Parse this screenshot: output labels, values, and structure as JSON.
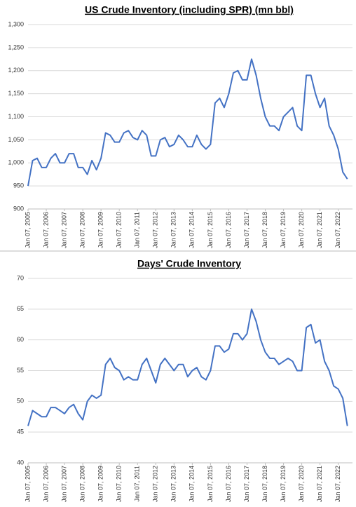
{
  "chart_data": [
    {
      "type": "line",
      "title": "US Crude Inventory (including SPR) (mn bbl)",
      "x": [
        2005,
        2005.25,
        2005.5,
        2005.75,
        2006,
        2006.25,
        2006.5,
        2006.75,
        2007,
        2007.25,
        2007.5,
        2007.75,
        2008,
        2008.25,
        2008.5,
        2008.75,
        2009,
        2009.25,
        2009.5,
        2009.75,
        2010,
        2010.25,
        2010.5,
        2010.75,
        2011,
        2011.25,
        2011.5,
        2011.75,
        2012,
        2012.25,
        2012.5,
        2012.75,
        2013,
        2013.25,
        2013.5,
        2013.75,
        2014,
        2014.25,
        2014.5,
        2014.75,
        2015,
        2015.25,
        2015.5,
        2015.75,
        2016,
        2016.25,
        2016.5,
        2016.75,
        2017,
        2017.25,
        2017.5,
        2017.75,
        2018,
        2018.25,
        2018.5,
        2018.75,
        2019,
        2019.25,
        2019.5,
        2019.75,
        2020,
        2020.25,
        2020.5,
        2020.75,
        2021,
        2021.25,
        2021.5,
        2021.75,
        2022,
        2022.25,
        2022.5
      ],
      "series": [
        {
          "color": "#4472c4",
          "values": [
            950,
            1005,
            1010,
            990,
            990,
            1010,
            1020,
            1000,
            1000,
            1020,
            1020,
            990,
            990,
            975,
            1005,
            985,
            1010,
            1065,
            1060,
            1045,
            1045,
            1065,
            1070,
            1055,
            1050,
            1070,
            1060,
            1015,
            1015,
            1050,
            1055,
            1035,
            1040,
            1060,
            1050,
            1035,
            1035,
            1060,
            1040,
            1030,
            1040,
            1130,
            1140,
            1120,
            1150,
            1195,
            1200,
            1180,
            1180,
            1225,
            1190,
            1140,
            1100,
            1080,
            1080,
            1070,
            1100,
            1110,
            1120,
            1080,
            1070,
            1190,
            1190,
            1150,
            1120,
            1140,
            1080,
            1060,
            1030,
            980,
            965
          ]
        }
      ],
      "xlim": [
        2005,
        2022.55
      ],
      "xticks": [
        {
          "value": 2005,
          "label": "Jan 07, 2005"
        },
        {
          "value": 2006,
          "label": "Jan 07, 2006"
        },
        {
          "value": 2007,
          "label": "Jan 07, 2007"
        },
        {
          "value": 2008,
          "label": "Jan 07, 2008"
        },
        {
          "value": 2009,
          "label": "Jan 07, 2009"
        },
        {
          "value": 2010,
          "label": "Jan 07, 2010"
        },
        {
          "value": 2011,
          "label": "Jan 07, 2011"
        },
        {
          "value": 2012,
          "label": "Jan 07, 2012"
        },
        {
          "value": 2013,
          "label": "Jan 07, 2013"
        },
        {
          "value": 2014,
          "label": "Jan 07, 2014"
        },
        {
          "value": 2015,
          "label": "Jan 07, 2015"
        },
        {
          "value": 2016,
          "label": "Jan 07, 2016"
        },
        {
          "value": 2017,
          "label": "Jan 07, 2017"
        },
        {
          "value": 2018,
          "label": "Jan 07, 2018"
        },
        {
          "value": 2019,
          "label": "Jan 07, 2019"
        },
        {
          "value": 2020,
          "label": "Jan 07, 2020"
        },
        {
          "value": 2021,
          "label": "Jan 07, 2021"
        },
        {
          "value": 2022,
          "label": "Jan 07, 2022"
        }
      ],
      "ylim": [
        900,
        1300
      ],
      "yticks": [
        900,
        950,
        {
          "value": 1000,
          "label": "1,000"
        },
        {
          "value": 1050,
          "label": "1,050"
        },
        {
          "value": 1100,
          "label": "1,100"
        },
        {
          "value": 1150,
          "label": "1,150"
        },
        {
          "value": 1200,
          "label": "1,200"
        },
        {
          "value": 1250,
          "label": "1,250"
        },
        {
          "value": 1300,
          "label": "1,300"
        }
      ],
      "grid": true
    },
    {
      "type": "line",
      "title": "Days' Crude Inventory",
      "x": [
        2005,
        2005.25,
        2005.5,
        2005.75,
        2006,
        2006.25,
        2006.5,
        2006.75,
        2007,
        2007.25,
        2007.5,
        2007.75,
        2008,
        2008.25,
        2008.5,
        2008.75,
        2009,
        2009.25,
        2009.5,
        2009.75,
        2010,
        2010.25,
        2010.5,
        2010.75,
        2011,
        2011.25,
        2011.5,
        2011.75,
        2012,
        2012.25,
        2012.5,
        2012.75,
        2013,
        2013.25,
        2013.5,
        2013.75,
        2014,
        2014.25,
        2014.5,
        2014.75,
        2015,
        2015.25,
        2015.5,
        2015.75,
        2016,
        2016.25,
        2016.5,
        2016.75,
        2017,
        2017.25,
        2017.5,
        2017.75,
        2018,
        2018.25,
        2018.5,
        2018.75,
        2019,
        2019.25,
        2019.5,
        2019.75,
        2020,
        2020.25,
        2020.5,
        2020.75,
        2021,
        2021.25,
        2021.5,
        2021.75,
        2022,
        2022.25,
        2022.5
      ],
      "series": [
        {
          "color": "#4472c4",
          "values": [
            46,
            48.5,
            48,
            47.5,
            47.5,
            49,
            49,
            48.5,
            48,
            49,
            49.5,
            48,
            47,
            50,
            51,
            50.5,
            51,
            56,
            57,
            55.5,
            55,
            53.5,
            54,
            53.5,
            53.5,
            56,
            57,
            55,
            53,
            56,
            57,
            56,
            55,
            56,
            56,
            54,
            55,
            55.5,
            54,
            53.5,
            55,
            59,
            59,
            58,
            58.5,
            61,
            61,
            60,
            61,
            65,
            63,
            60,
            58,
            57,
            57,
            56,
            56.5,
            57,
            56.5,
            55,
            55,
            62,
            62.5,
            59.5,
            60,
            56.5,
            55,
            52.5,
            52,
            50.5,
            46
          ]
        }
      ],
      "xlim": [
        2005,
        2022.55
      ],
      "xticks": [
        {
          "value": 2005,
          "label": "Jan 07, 2005"
        },
        {
          "value": 2006,
          "label": "Jan 07, 2006"
        },
        {
          "value": 2007,
          "label": "Jan 07, 2007"
        },
        {
          "value": 2008,
          "label": "Jan 07, 2008"
        },
        {
          "value": 2009,
          "label": "Jan 07, 2009"
        },
        {
          "value": 2010,
          "label": "Jan 07, 2010"
        },
        {
          "value": 2011,
          "label": "Jan 07, 2011"
        },
        {
          "value": 2012,
          "label": "Jan 07, 2012"
        },
        {
          "value": 2013,
          "label": "Jan 07, 2013"
        },
        {
          "value": 2014,
          "label": "Jan 07, 2014"
        },
        {
          "value": 2015,
          "label": "Jan 07, 2015"
        },
        {
          "value": 2016,
          "label": "Jan 07, 2016"
        },
        {
          "value": 2017,
          "label": "Jan 07, 2017"
        },
        {
          "value": 2018,
          "label": "Jan 07, 2018"
        },
        {
          "value": 2019,
          "label": "Jan 07, 2019"
        },
        {
          "value": 2020,
          "label": "Jan 07, 2020"
        },
        {
          "value": 2021,
          "label": "Jan 07, 2021"
        },
        {
          "value": 2022,
          "label": "Jan 07, 2022"
        }
      ],
      "ylim": [
        40,
        70
      ],
      "yticks": [
        40,
        45,
        50,
        55,
        60,
        65,
        70
      ],
      "grid": true
    }
  ]
}
